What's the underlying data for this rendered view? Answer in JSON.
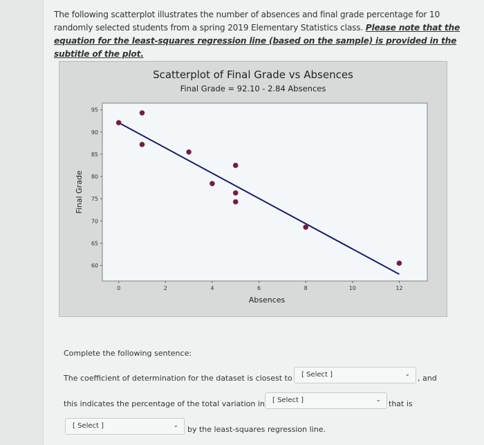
{
  "intro": {
    "line1": "The following scatterplot illustrates the number of absences and final grade percentage for 10",
    "line2_plain": "randomly selected students from a spring 2019 Elementary Statistics class. ",
    "line2_em": "Please note that the",
    "line3_em": "equation for the least-squares regression line (based on the sample) is provided in the subtitle of the plot."
  },
  "chart_data": {
    "type": "scatter",
    "title": "Scatterplot of Final Grade vs Absences",
    "subtitle": "Final Grade = 92.10 - 2.84 Absences",
    "xlabel": "Absences",
    "ylabel": "Final Grade",
    "xlim": [
      -0.7,
      13.2
    ],
    "ylim": [
      56.5,
      96.5
    ],
    "xticks": [
      0,
      2,
      4,
      6,
      8,
      10,
      12
    ],
    "yticks": [
      60,
      65,
      70,
      75,
      80,
      85,
      90,
      95
    ],
    "grid": false,
    "legend": null,
    "points": [
      {
        "x": 0,
        "y": 92.1
      },
      {
        "x": 1,
        "y": 94.3
      },
      {
        "x": 1,
        "y": 87.2
      },
      {
        "x": 3,
        "y": 85.5
      },
      {
        "x": 4,
        "y": 78.4
      },
      {
        "x": 5,
        "y": 82.5
      },
      {
        "x": 5,
        "y": 76.3
      },
      {
        "x": 5,
        "y": 74.3
      },
      {
        "x": 8,
        "y": 68.6
      },
      {
        "x": 12,
        "y": 60.5
      }
    ],
    "regression_line": {
      "intercept": 92.1,
      "slope": -2.84,
      "x_from": 0,
      "x_to": 12
    },
    "point_color": "#6b1f45",
    "line_color": "#1a1a6e"
  },
  "question": {
    "prompt": "Complete the following sentence:",
    "part1": "The coefficient of determination for the dataset is closest to",
    "after1": ", and",
    "part2": "this indicates the percentage of the total variation in",
    "after2": "that is",
    "after3": "by the least-squares regression line.",
    "select1": "[ Select ]",
    "select2": "[ Select ]",
    "select3": "[ Select ]",
    "chevron": "⌄"
  }
}
